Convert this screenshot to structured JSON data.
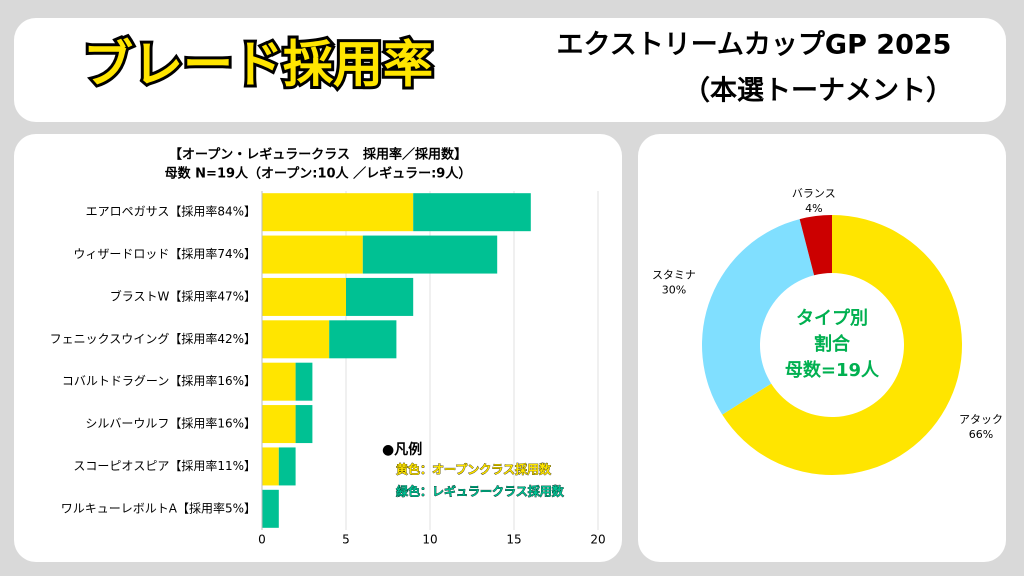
{
  "header": {
    "title": "ブレード採用率",
    "subtitle": [
      "エクストリームカップGP 2025",
      "（本選トーナメント）"
    ]
  },
  "chart_data": [
    {
      "type": "bar",
      "orientation": "horizontal",
      "stacked": true,
      "title": "【オープン・レギュラークラス　採用率／採用数】",
      "subtitle": "母数 N=19人（オープン:10人 ／レギュラー:9人）",
      "categories": [
        "エアロペガサス【採用率84%】",
        "ウィザードロッド【採用率74%】",
        "ブラストW【採用率47%】",
        "フェニックスウイング【採用率42%】",
        "コバルトドラグーン【採用率16%】",
        "シルバーウルフ【採用率16%】",
        "スコーピオスピア【採用率11%】",
        "ワルキューレボルトA【採用率5%】"
      ],
      "series": [
        {
          "name": "黄色：オープンクラス採用数",
          "color": "#ffe500",
          "values": [
            9,
            6,
            5,
            4,
            2,
            2,
            1,
            0
          ]
        },
        {
          "name": "緑色：レギュラークラス採用数",
          "color": "#00c193",
          "values": [
            7,
            8,
            4,
            4,
            1,
            1,
            1,
            1
          ]
        }
      ],
      "legend_title": "●凡例",
      "xlim": [
        0,
        20
      ],
      "xticks": [
        0,
        5,
        10,
        15,
        20
      ],
      "grid": true
    },
    {
      "type": "donut",
      "categories": [
        "アタック",
        "スタミナ",
        "バランス"
      ],
      "values": [
        66,
        30,
        4
      ],
      "value_labels": [
        "66%",
        "30%",
        "4%"
      ],
      "colors": [
        "#ffe500",
        "#80dfff",
        "#cc0000"
      ],
      "center_label": [
        "タイプ別",
        "割合",
        "母数=19人"
      ]
    }
  ]
}
